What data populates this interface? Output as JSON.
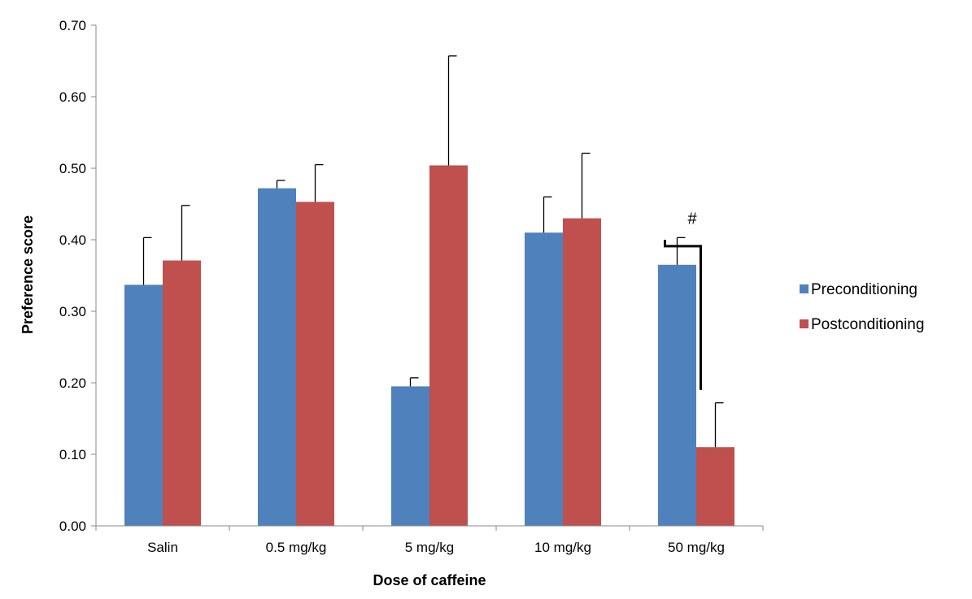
{
  "chart_data": {
    "type": "bar",
    "title": "",
    "xlabel": "Dose of caffeine",
    "ylabel": "Preference score",
    "categories": [
      "Salin",
      "0.5 mg/kg",
      "5 mg/kg",
      "10 mg/kg",
      "50 mg/kg"
    ],
    "ylim": [
      0,
      0.7
    ],
    "yticks": [
      "0.00",
      "0.10",
      "0.20",
      "0.30",
      "0.40",
      "0.50",
      "0.60",
      "0.70"
    ],
    "grid": false,
    "legend_position": "right",
    "series": [
      {
        "name": "Preconditioning",
        "color": "#4F81BD",
        "values": [
          0.337,
          0.472,
          0.195,
          0.41,
          0.365
        ],
        "error_upper": [
          0.403,
          0.483,
          0.207,
          0.46,
          0.403
        ]
      },
      {
        "name": "Postconditioning",
        "color": "#C0504D",
        "values": [
          0.371,
          0.453,
          0.504,
          0.43,
          0.11
        ],
        "error_upper": [
          0.448,
          0.505,
          0.657,
          0.521,
          0.172
        ]
      }
    ],
    "annotations": [
      {
        "text": "#",
        "category": "50 mg/kg",
        "type": "significance-bracket"
      }
    ]
  }
}
